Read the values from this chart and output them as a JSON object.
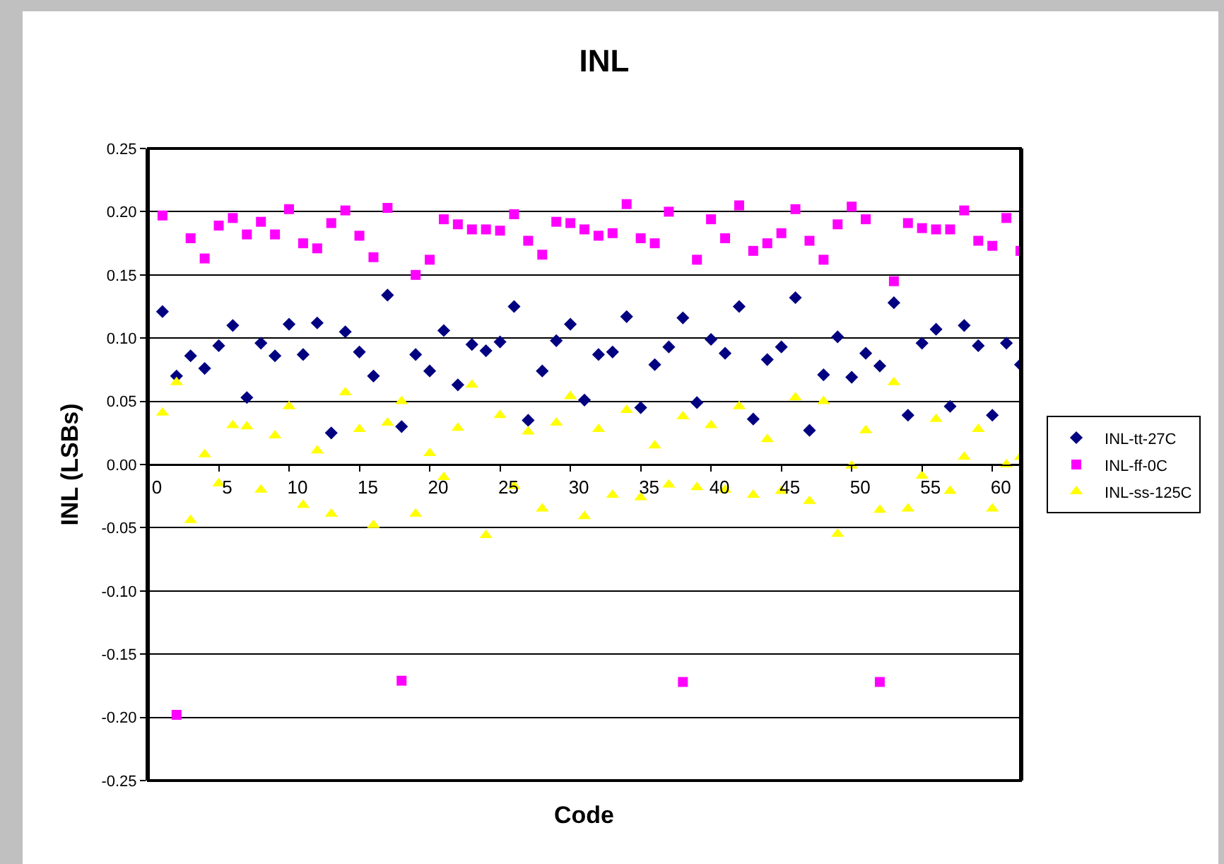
{
  "chart_data": {
    "type": "scatter",
    "title": "INL",
    "xlabel": "Code",
    "ylabel": "INL (LSBs)",
    "x": [
      1,
      2,
      3,
      4,
      5,
      6,
      7,
      8,
      9,
      10,
      11,
      12,
      13,
      14,
      15,
      16,
      17,
      18,
      19,
      20,
      21,
      22,
      23,
      24,
      25,
      26,
      27,
      28,
      29,
      30,
      31,
      32,
      33,
      34,
      35,
      36,
      37,
      38,
      39,
      40,
      41,
      42,
      43,
      44,
      45,
      46,
      47,
      48,
      49,
      50,
      51,
      52,
      53,
      54,
      55,
      56,
      57,
      58,
      59,
      60,
      61,
      62
    ],
    "series": [
      {
        "name": "INL-tt-27C",
        "color": "#000080",
        "marker": "diamond",
        "values": [
          0.121,
          0.07,
          0.086,
          0.076,
          0.094,
          0.11,
          0.053,
          0.096,
          0.086,
          0.111,
          0.087,
          0.112,
          0.025,
          0.105,
          0.089,
          0.07,
          0.134,
          0.03,
          0.087,
          0.074,
          0.106,
          0.063,
          0.095,
          0.09,
          0.097,
          0.125,
          0.035,
          0.074,
          0.098,
          0.111,
          0.051,
          0.087,
          0.089,
          0.117,
          0.045,
          0.079,
          0.093,
          0.116,
          0.049,
          0.099,
          0.088,
          0.125,
          0.036,
          0.083,
          0.093,
          0.132,
          0.027,
          0.071,
          0.101,
          0.069,
          0.088,
          0.078,
          0.128,
          0.039,
          0.096,
          0.107,
          0.046,
          0.11,
          0.094,
          0.039,
          0.096,
          0.079
        ]
      },
      {
        "name": "INL-ff-0C",
        "color": "#ff00ff",
        "marker": "square",
        "values": [
          0.197,
          -0.198,
          0.179,
          0.163,
          0.189,
          0.195,
          0.182,
          0.192,
          0.182,
          0.202,
          0.175,
          0.171,
          0.191,
          0.201,
          0.181,
          0.164,
          0.203,
          -0.171,
          0.15,
          0.162,
          0.194,
          0.19,
          0.186,
          0.186,
          0.185,
          0.198,
          0.177,
          0.166,
          0.192,
          0.191,
          0.186,
          0.181,
          0.183,
          0.206,
          0.179,
          0.175,
          0.2,
          -0.172,
          0.162,
          0.194,
          0.179,
          0.205,
          0.169,
          0.175,
          0.183,
          0.202,
          0.177,
          0.162,
          0.19,
          0.204,
          0.194,
          -0.172,
          0.145,
          0.191,
          0.187,
          0.186,
          0.186,
          0.201,
          0.177,
          0.173,
          0.195,
          0.169
        ]
      },
      {
        "name": "INL-ss-125C",
        "color": "#ffff00",
        "marker": "triangle",
        "values": [
          0.041,
          0.065,
          -0.044,
          0.008,
          -0.015,
          0.031,
          0.03,
          -0.02,
          0.023,
          0.046,
          -0.032,
          0.011,
          -0.039,
          0.057,
          0.028,
          -0.048,
          0.033,
          0.05,
          -0.039,
          0.009,
          -0.01,
          0.029,
          0.063,
          -0.056,
          0.039,
          -0.017,
          0.026,
          -0.035,
          0.033,
          0.054,
          -0.041,
          0.028,
          -0.024,
          0.043,
          -0.026,
          0.015,
          -0.016,
          0.038,
          -0.018,
          0.031,
          -0.02,
          0.046,
          -0.024,
          0.02,
          -0.021,
          0.053,
          -0.029,
          0.05,
          -0.055,
          -0.001,
          0.027,
          -0.036,
          0.065,
          -0.035,
          -0.009,
          0.036,
          -0.021,
          0.006,
          0.028,
          -0.035,
          0.0,
          0.006
        ]
      }
    ],
    "xlim": [
      0,
      62
    ],
    "xticks": [
      0,
      5,
      10,
      15,
      20,
      25,
      30,
      35,
      40,
      45,
      50,
      55,
      60
    ],
    "ylim": [
      -0.25,
      0.25
    ],
    "yticks": [
      {
        "value": -0.25,
        "label": "-0.25"
      },
      {
        "value": -0.2,
        "label": "-0.20"
      },
      {
        "value": -0.15,
        "label": "-0.15"
      },
      {
        "value": -0.1,
        "label": "-0.10"
      },
      {
        "value": -0.05,
        "label": "-0.05"
      },
      {
        "value": 0,
        "label": "0.00"
      },
      {
        "value": 0.05,
        "label": "0.05"
      },
      {
        "value": 0.1,
        "label": "0.10"
      },
      {
        "value": 0.15,
        "label": "0.15"
      },
      {
        "value": 0.2,
        "label": "0.20"
      },
      {
        "value": 0.25,
        "label": "0.25"
      }
    ],
    "grid": "y",
    "legend": "right"
  }
}
